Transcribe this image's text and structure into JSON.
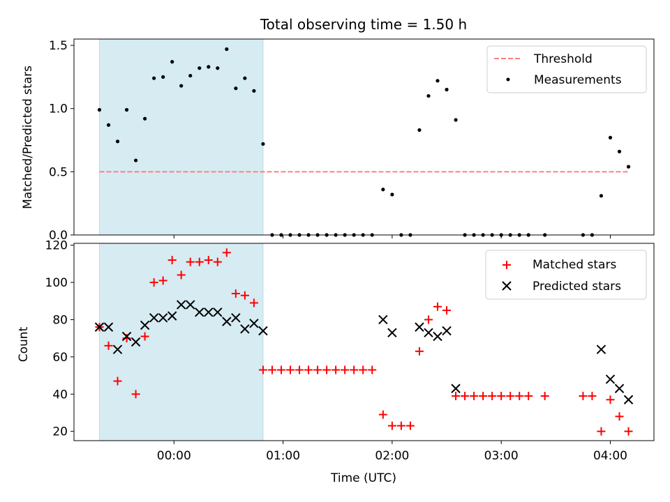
{
  "chart_data": [
    {
      "type": "scatter",
      "title": "Total observing time = 1.50 h",
      "ylabel": "Matched/Predicted stars",
      "xlabel": "",
      "x_ticks": [
        "00:00",
        "01:00",
        "02:00",
        "03:00",
        "04:00"
      ],
      "x_tick_minutes": [
        0,
        60,
        120,
        180,
        240
      ],
      "xlim_minutes": [
        -55,
        264
      ],
      "ylim": [
        0,
        1.55
      ],
      "y_ticks": [
        0.0,
        0.5,
        1.0,
        1.5
      ],
      "y_tick_labels": [
        "0.0",
        "0.5",
        "1.0",
        "1.5"
      ],
      "shaded_span_minutes": [
        -41,
        49
      ],
      "shade_color": "#add8e6",
      "legend_position": "upper right",
      "threshold": {
        "name": "Threshold",
        "value": 0.5,
        "x_range_minutes": [
          -41,
          250
        ],
        "color": "#ff7f7f"
      },
      "series": [
        {
          "name": "Measurements",
          "color": "#000000",
          "points": [
            [
              -41,
              0.99
            ],
            [
              -36,
              0.87
            ],
            [
              -31,
              0.74
            ],
            [
              -26,
              0.99
            ],
            [
              -21,
              0.59
            ],
            [
              -16,
              0.92
            ],
            [
              -11,
              1.24
            ],
            [
              -6,
              1.25
            ],
            [
              -1,
              1.37
            ],
            [
              4,
              1.18
            ],
            [
              9,
              1.26
            ],
            [
              14,
              1.32
            ],
            [
              19,
              1.33
            ],
            [
              24,
              1.32
            ],
            [
              29,
              1.47
            ],
            [
              34,
              1.16
            ],
            [
              39,
              1.24
            ],
            [
              44,
              1.14
            ],
            [
              49,
              0.72
            ],
            [
              54,
              0
            ],
            [
              59,
              0
            ],
            [
              64,
              0
            ],
            [
              69,
              0
            ],
            [
              74,
              0
            ],
            [
              79,
              0
            ],
            [
              84,
              0
            ],
            [
              89,
              0
            ],
            [
              94,
              0
            ],
            [
              99,
              0
            ],
            [
              104,
              0
            ],
            [
              109,
              0
            ],
            [
              115,
              0.36
            ],
            [
              120,
              0.32
            ],
            [
              125,
              0
            ],
            [
              130,
              0
            ],
            [
              135,
              0.83
            ],
            [
              140,
              1.1
            ],
            [
              145,
              1.22
            ],
            [
              150,
              1.15
            ],
            [
              155,
              0.91
            ],
            [
              160,
              0
            ],
            [
              165,
              0
            ],
            [
              170,
              0
            ],
            [
              175,
              0
            ],
            [
              180,
              0
            ],
            [
              185,
              0
            ],
            [
              190,
              0
            ],
            [
              195,
              0
            ],
            [
              204,
              0
            ],
            [
              225,
              0
            ],
            [
              230,
              0
            ],
            [
              235,
              0.31
            ],
            [
              240,
              0.77
            ],
            [
              245,
              0.66
            ],
            [
              250,
              0.54
            ]
          ]
        }
      ]
    },
    {
      "type": "scatter",
      "title": "",
      "ylabel": "Count",
      "xlabel": "Time (UTC)",
      "x_ticks": [
        "00:00",
        "01:00",
        "02:00",
        "03:00",
        "04:00"
      ],
      "x_tick_minutes": [
        0,
        60,
        120,
        180,
        240
      ],
      "xlim_minutes": [
        -55,
        264
      ],
      "ylim": [
        15,
        121
      ],
      "y_ticks": [
        20,
        40,
        60,
        80,
        100,
        120
      ],
      "y_tick_labels": [
        "20",
        "40",
        "60",
        "80",
        "100",
        "120"
      ],
      "shaded_span_minutes": [
        -41,
        49
      ],
      "shade_color": "#add8e6",
      "legend_position": "upper right",
      "series": [
        {
          "name": "Matched stars",
          "marker": "plus",
          "color": "#ff0000",
          "points": [
            [
              -41,
              76
            ],
            [
              -36,
              66
            ],
            [
              -31,
              47
            ],
            [
              -26,
              70
            ],
            [
              -21,
              40
            ],
            [
              -16,
              71
            ],
            [
              -11,
              100
            ],
            [
              -6,
              101
            ],
            [
              -1,
              112
            ],
            [
              4,
              104
            ],
            [
              9,
              111
            ],
            [
              14,
              111
            ],
            [
              19,
              112
            ],
            [
              24,
              111
            ],
            [
              29,
              116
            ],
            [
              34,
              94
            ],
            [
              39,
              93
            ],
            [
              44,
              89
            ],
            [
              49,
              53
            ],
            [
              54,
              53
            ],
            [
              59,
              53
            ],
            [
              64,
              53
            ],
            [
              69,
              53
            ],
            [
              74,
              53
            ],
            [
              79,
              53
            ],
            [
              84,
              53
            ],
            [
              89,
              53
            ],
            [
              94,
              53
            ],
            [
              99,
              53
            ],
            [
              104,
              53
            ],
            [
              109,
              53
            ],
            [
              115,
              29
            ],
            [
              120,
              23
            ],
            [
              125,
              23
            ],
            [
              130,
              23
            ],
            [
              135,
              63
            ],
            [
              140,
              80
            ],
            [
              145,
              87
            ],
            [
              150,
              85
            ],
            [
              155,
              39
            ],
            [
              160,
              39
            ],
            [
              165,
              39
            ],
            [
              170,
              39
            ],
            [
              175,
              39
            ],
            [
              180,
              39
            ],
            [
              185,
              39
            ],
            [
              190,
              39
            ],
            [
              195,
              39
            ],
            [
              204,
              39
            ],
            [
              225,
              39
            ],
            [
              230,
              39
            ],
            [
              235,
              20
            ],
            [
              240,
              37
            ],
            [
              245,
              28
            ],
            [
              250,
              20
            ]
          ]
        },
        {
          "name": "Predicted stars",
          "marker": "x",
          "color": "#000000",
          "points": [
            [
              -41,
              76
            ],
            [
              -36,
              76
            ],
            [
              -31,
              64
            ],
            [
              -26,
              71
            ],
            [
              -21,
              68
            ],
            [
              -16,
              77
            ],
            [
              -11,
              81
            ],
            [
              -6,
              81
            ],
            [
              -1,
              82
            ],
            [
              4,
              88
            ],
            [
              9,
              88
            ],
            [
              14,
              84
            ],
            [
              19,
              84
            ],
            [
              24,
              84
            ],
            [
              29,
              79
            ],
            [
              34,
              81
            ],
            [
              39,
              75
            ],
            [
              44,
              78
            ],
            [
              49,
              74
            ],
            [
              115,
              80
            ],
            [
              120,
              73
            ],
            [
              135,
              76
            ],
            [
              140,
              73
            ],
            [
              145,
              71
            ],
            [
              150,
              74
            ],
            [
              155,
              43
            ],
            [
              235,
              64
            ],
            [
              240,
              48
            ],
            [
              245,
              43
            ],
            [
              250,
              37
            ]
          ]
        }
      ]
    }
  ]
}
